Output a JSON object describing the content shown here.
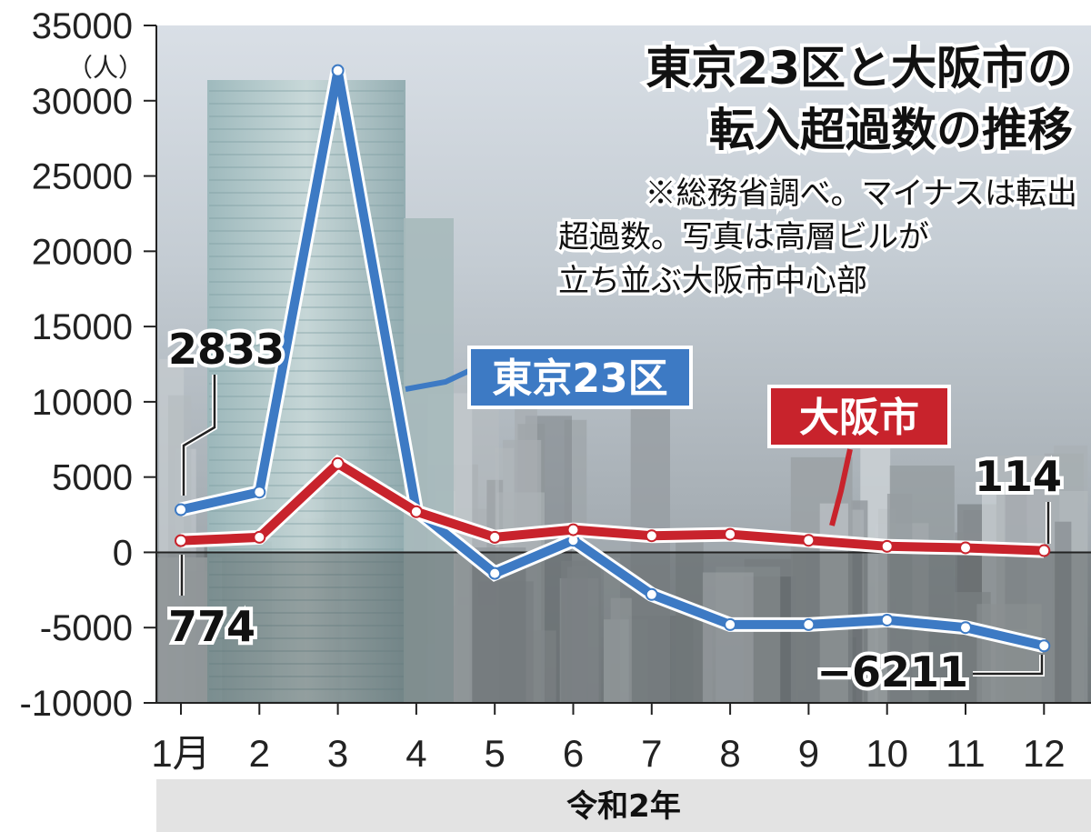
{
  "chart_data": {
    "type": "line",
    "title": "東京23区と大阪市の 転入超過数の推移",
    "title_lines": [
      "東京23区と大阪市の",
      "転入超過数の推移"
    ],
    "note_lines": [
      "※総務省調べ。マイナスは転出",
      "超過数。写真は高層ビルが",
      "立ち並ぶ大阪市中心部"
    ],
    "ylabel": "（人）",
    "xlabel": "令和2年",
    "categories": [
      "1月",
      "2",
      "3",
      "4",
      "5",
      "6",
      "7",
      "8",
      "9",
      "10",
      "11",
      "12"
    ],
    "yticks": [
      "35000",
      "30000",
      "25000",
      "20000",
      "15000",
      "10000",
      "5000",
      "0",
      "-5000",
      "-10000"
    ],
    "ylim": [
      -10000,
      35000
    ],
    "series": [
      {
        "name": "東京23区",
        "color": "#3d7ac4",
        "values": [
          2833,
          4000,
          32000,
          2800,
          -1400,
          800,
          -2800,
          -4800,
          -4800,
          -4500,
          -5000,
          -6211
        ]
      },
      {
        "name": "大阪市",
        "color": "#c8232c",
        "values": [
          774,
          1000,
          5900,
          2700,
          1000,
          1500,
          1100,
          1200,
          800,
          400,
          300,
          114
        ]
      }
    ],
    "annotations": [
      {
        "series": 0,
        "index": 0,
        "label": "2833"
      },
      {
        "series": 1,
        "index": 0,
        "label": "774"
      },
      {
        "series": 1,
        "index": 11,
        "label": "114"
      },
      {
        "series": 0,
        "index": 11,
        "label": "−6211"
      }
    ],
    "zero_line": true,
    "background": "photo of high-rise buildings"
  }
}
